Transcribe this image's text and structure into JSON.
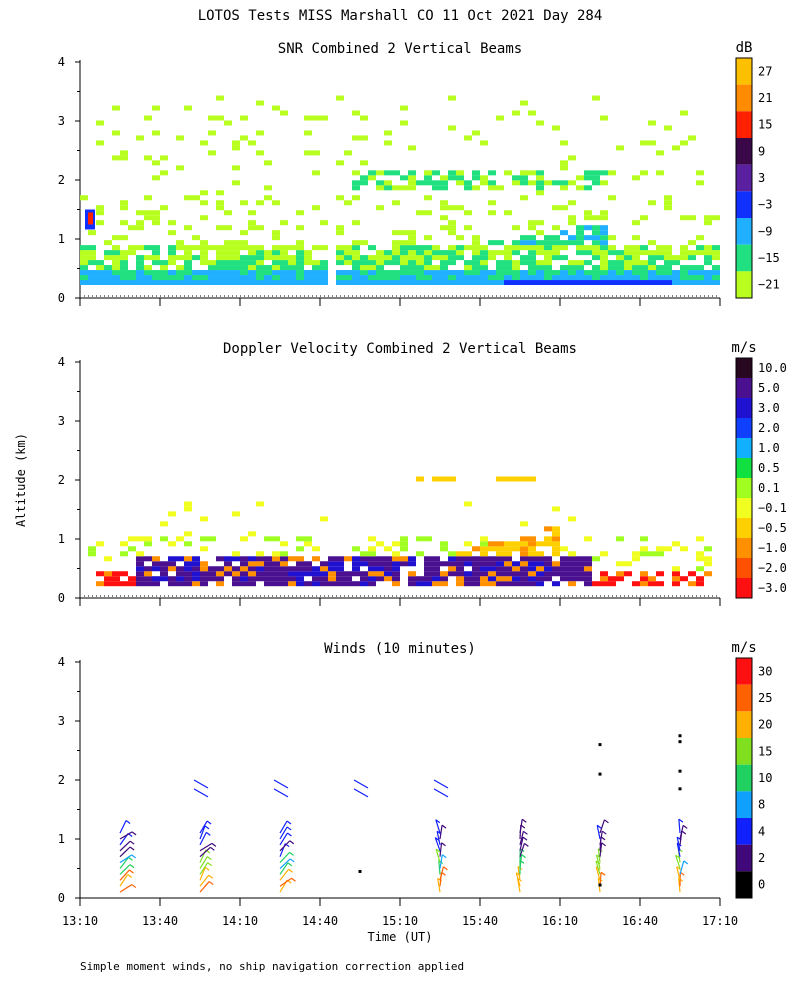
{
  "page_title": "LOTOS Tests MISS Marshall CO  11 Oct 2021 Day 284",
  "y_axis_label": "Altitude (km)",
  "x_axis_label": "Time (UT)",
  "footnote": "Simple moment winds, no ship navigation correction applied",
  "chart_data": [
    {
      "type": "heatmap",
      "title": "SNR Combined 2 Vertical Beams",
      "unit": "dB",
      "ylim": [
        0,
        4
      ],
      "yticks": [
        "0",
        "1",
        "2",
        "3",
        "4"
      ],
      "grid": false,
      "colorbar_labels": [
        "27",
        "21",
        "15",
        "9",
        "3",
        "−3",
        "−9",
        "−15",
        "−21"
      ],
      "colorbar_colors": [
        "#ffc000",
        "#ff8c00",
        "#ff2000",
        "#3a0848",
        "#5a20a0",
        "#1030ff",
        "#20b0ff",
        "#20e080",
        "#b8ff20"
      ]
    },
    {
      "type": "heatmap",
      "title": "Doppler Velocity Combined 2 Vertical Beams",
      "unit": "m/s",
      "ylim": [
        0,
        4
      ],
      "yticks": [
        "0",
        "1",
        "2",
        "3",
        "4"
      ],
      "grid": false,
      "colorbar_labels": [
        "10.0",
        "5.0",
        "3.0",
        "2.0",
        "1.0",
        "0.5",
        "0.1",
        "−0.1",
        "−0.5",
        "−1.0",
        "−2.0",
        "−3.0"
      ],
      "colorbar_colors": [
        "#280820",
        "#4a1090",
        "#2010d0",
        "#1040ff",
        "#10b0ff",
        "#10e040",
        "#a0ff20",
        "#f0ff20",
        "#ffd000",
        "#ff9000",
        "#ff5000",
        "#ff1010"
      ]
    },
    {
      "type": "scatter",
      "title": "Winds (10 minutes)",
      "unit": "m/s",
      "ylim": [
        0,
        4
      ],
      "yticks": [
        "0",
        "1",
        "2",
        "3",
        "4"
      ],
      "grid": false,
      "colorbar_labels": [
        "30",
        "25",
        "20",
        "15",
        "10",
        "8",
        "4",
        "2",
        "0"
      ],
      "colorbar_colors": [
        "#ff1010",
        "#ff6000",
        "#ffb000",
        "#80e020",
        "#20d060",
        "#10a0ff",
        "#1020ff",
        "#40087a",
        "#000000"
      ],
      "xticks": [
        "13:10",
        "13:40",
        "14:10",
        "14:40",
        "15:10",
        "15:40",
        "16:10",
        "16:40",
        "17:10"
      ],
      "barb_columns": [
        "13:25",
        "13:55",
        "14:25",
        "14:55",
        "15:25",
        "15:55",
        "16:25",
        "16:55"
      ]
    }
  ]
}
